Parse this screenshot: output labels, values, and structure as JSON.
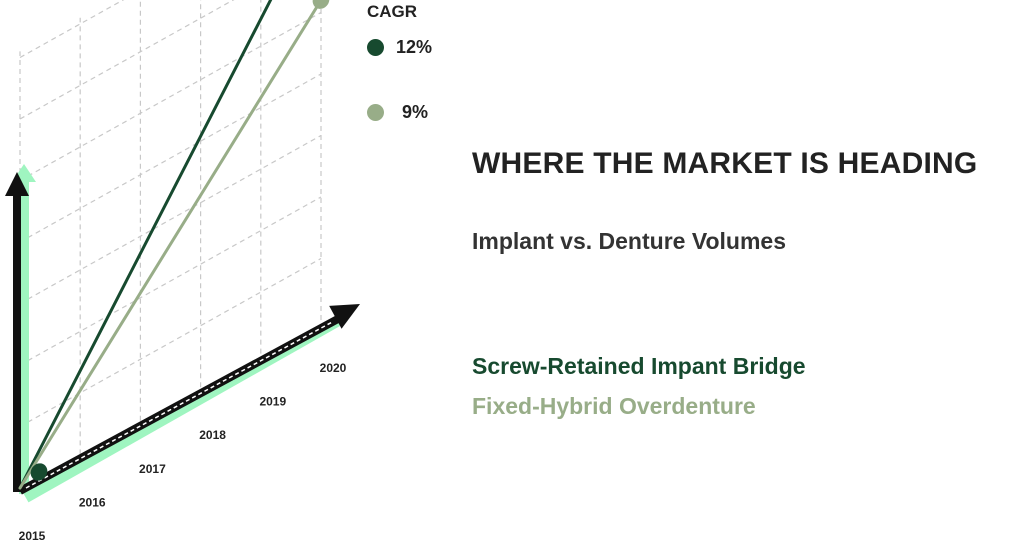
{
  "chart_data": {
    "type": "line",
    "title": "WHERE THE MARKET IS HEADING",
    "subtitle": "Implant vs. Denture Volumes",
    "categories": [
      "2015",
      "2016",
      "2017",
      "2018",
      "2019",
      "2020"
    ],
    "legend_title": "CAGR",
    "series": [
      {
        "name": "Screw-Retained Impant Bridge",
        "cagr": "12%",
        "color": "#174a2f",
        "start": 0,
        "end": 6.8
      },
      {
        "name": "Fixed-Hybrid Overdenture",
        "cagr": "9%",
        "color": "#98ad88",
        "start": 0,
        "end": 5.2
      }
    ],
    "grid": true,
    "legend_placement": "top"
  },
  "colors": {
    "axis_dark": "#111111",
    "axis_glow": "#9ff5c0",
    "grid": "#c8c8c8"
  }
}
